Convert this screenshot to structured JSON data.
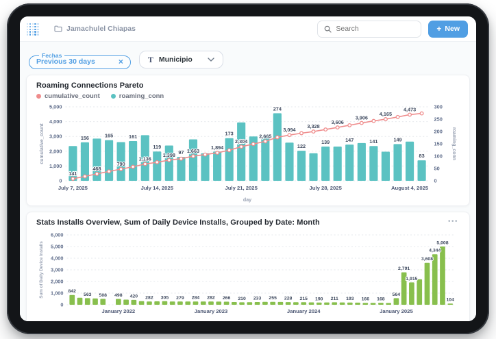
{
  "topbar": {
    "breadcrumb": "Jamachulel Chiapas",
    "search_placeholder": "Search",
    "new_plus": "+",
    "new_label": "New"
  },
  "filters": {
    "fechas_label": "Fechas",
    "fechas_value": "Previous 30 days",
    "clear_icon": "×",
    "municipio_type_icon": "T",
    "municipio_label": "Municipio"
  },
  "cards": {
    "installs_menu_icon": "•••"
  },
  "colors": {
    "brand": "#509EE3",
    "teal": "#5BC2C2",
    "pink": "#EF8C8C",
    "green": "#88BF4D",
    "grid": "#E5E8EC"
  },
  "chart_data": [
    {
      "type": "pareto-combo",
      "title": "Roaming Connections Pareto",
      "x_axis_label": "day",
      "y_left_label": "cumulative_count",
      "y_left_range": [
        0,
        5000
      ],
      "y_left_ticks": [
        0,
        1000,
        2000,
        3000,
        4000,
        5000
      ],
      "y_right_label": "roaming_conn",
      "y_right_range": [
        0,
        300
      ],
      "y_right_ticks": [
        0,
        50,
        100,
        150,
        200,
        250,
        300
      ],
      "x_ticks": [
        {
          "index": 0,
          "label": "July 7, 2025"
        },
        {
          "index": 7,
          "label": "July 14, 2025"
        },
        {
          "index": 14,
          "label": "July 21, 2025"
        },
        {
          "index": 21,
          "label": "July 28, 2025"
        },
        {
          "index": 28,
          "label": "August 4, 2025"
        }
      ],
      "series": [
        {
          "name": "roaming_conn",
          "type": "bar",
          "color": "#5BC2C2",
          "values": [
            141,
            156,
            171,
            165,
            157,
            161,
            185,
            119,
            143,
            97,
            168,
            112,
            119,
            173,
            237,
            180,
            181,
            274,
            155,
            122,
            112,
            139,
            139,
            147,
            153,
            141,
            118,
            149,
            159,
            83
          ],
          "labeled_indices": [
            1,
            3,
            5,
            7,
            9,
            13,
            17,
            19,
            21,
            23,
            25,
            27,
            29
          ]
        },
        {
          "name": "cumulative_count",
          "type": "line",
          "color": "#EF8C8C",
          "values": [
            141,
            297,
            468,
            633,
            790,
            951,
            1136,
            1255,
            1398,
            1495,
            1663,
            1775,
            1894,
            2067,
            2304,
            2484,
            2665,
            2939,
            3094,
            3216,
            3328,
            3467,
            3606,
            3753,
            3906,
            4047,
            4165,
            4314,
            4473,
            4556
          ],
          "labeled_indices": [
            0,
            2,
            4,
            6,
            8,
            10,
            12,
            14,
            16,
            18,
            20,
            22,
            24,
            26,
            28
          ]
        }
      ]
    },
    {
      "type": "bar",
      "title": "Stats Installs Overview, Sum of Daily Device Installs, Grouped by Date: Month",
      "ylabel": "Sum of Daily Device Installs",
      "ylim": [
        0,
        6000
      ],
      "y_ticks": [
        0,
        1000,
        2000,
        3000,
        4000,
        5000,
        6000
      ],
      "color": "#88BF4D",
      "x_ticks": [
        {
          "index": 6,
          "label": "January 2022"
        },
        {
          "index": 18,
          "label": "January 2023"
        },
        {
          "index": 30,
          "label": "January 2024"
        },
        {
          "index": 42,
          "label": "January 2025"
        }
      ],
      "values": [
        842,
        600,
        563,
        540,
        508,
        0,
        498,
        440,
        420,
        310,
        282,
        295,
        305,
        285,
        279,
        275,
        284,
        278,
        282,
        272,
        266,
        235,
        210,
        225,
        233,
        245,
        255,
        240,
        228,
        222,
        215,
        205,
        190,
        200,
        211,
        202,
        193,
        180,
        166,
        158,
        168,
        152,
        564,
        2791,
        1915,
        2195,
        3608,
        4344,
        5008,
        104
      ],
      "labeled_indices": [
        0,
        2,
        4,
        6,
        8,
        10,
        12,
        14,
        16,
        18,
        20,
        22,
        24,
        26,
        28,
        30,
        32,
        34,
        36,
        38,
        40,
        42,
        43,
        44,
        46,
        47,
        48,
        49
      ]
    }
  ]
}
